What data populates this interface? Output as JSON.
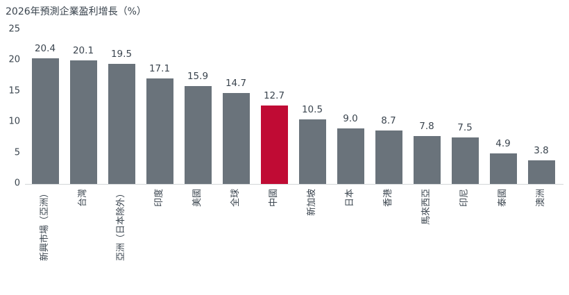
{
  "chart_data": {
    "type": "bar",
    "title": "2026年預測企業盈利增長（%）",
    "categories": [
      "新興市場（亞洲）",
      "台灣",
      "亞洲（日本除外）",
      "印度",
      "美國",
      "全球",
      "中國",
      "新加坡",
      "日本",
      "香港",
      "馬來西亞",
      "印尼",
      "泰國",
      "澳洲"
    ],
    "values": [
      20.4,
      20.1,
      19.5,
      17.1,
      15.9,
      14.7,
      12.7,
      10.5,
      9.0,
      8.7,
      7.8,
      7.5,
      4.9,
      3.8
    ],
    "value_label_decimals": 1,
    "highlight_index": 6,
    "highlight_category": "中國",
    "bar_color": "#6A737B",
    "highlight_color": "#C00B34",
    "text_color": "#3A444E",
    "axis_line_color": "#D2D5D7",
    "y_ticks": [
      0,
      5,
      10,
      15,
      20,
      25
    ],
    "ylim": [
      0,
      25
    ],
    "grid": false,
    "legend": false,
    "value_labels_shown": true,
    "xlabel": "",
    "ylabel": ""
  }
}
